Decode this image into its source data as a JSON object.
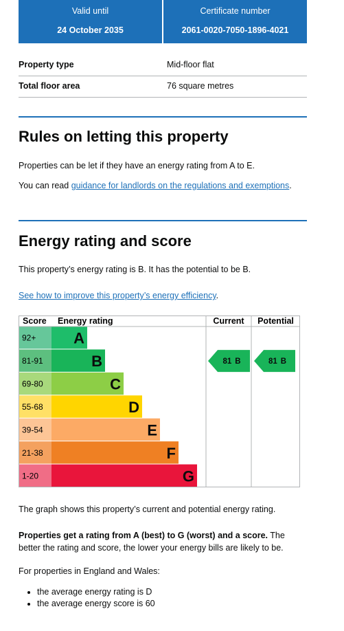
{
  "header": {
    "cells": [
      {
        "label": "Valid until",
        "value": "24 October 2035"
      },
      {
        "label": "Certificate number",
        "value": "2061-0020-7050-1896-4021"
      }
    ]
  },
  "summary": {
    "rows": [
      [
        "Property type",
        "Mid-floor flat"
      ],
      [
        "Total floor area",
        "76 square metres"
      ]
    ]
  },
  "letting": {
    "heading": "Rules on letting this property",
    "paragraph": "Properties can be let if they have an energy rating from A to E.",
    "read_prefix": "You can read ",
    "read_link": "guidance for landlords on the regulations and exemptions",
    "read_suffix": "."
  },
  "energy": {
    "heading": "Energy rating and score",
    "paragraph": "This property’s energy rating is B. It has the potential to be B.",
    "link": "See how to improve this property’s energy efficiency",
    "link_suffix": "."
  },
  "graph": {
    "headers": [
      "Score",
      "Energy rating",
      "Current",
      "Potential"
    ],
    "bands": [
      {
        "score": "92+",
        "letter": "A"
      },
      {
        "score": "81-91",
        "letter": "B"
      },
      {
        "score": "69-80",
        "letter": "C"
      },
      {
        "score": "55-68",
        "letter": "D"
      },
      {
        "score": "39-54",
        "letter": "E"
      },
      {
        "score": "21-38",
        "letter": "F"
      },
      {
        "score": "1-20",
        "letter": "G"
      }
    ],
    "current": {
      "score": 81,
      "letter": "B"
    },
    "potential": {
      "score": 81,
      "letter": "B"
    }
  },
  "after": {
    "graph_note": "The graph shows this property’s current and potential energy rating.",
    "bold": "Properties get a rating from A (best) to G (worst) and a score.",
    "rest": " The better the rating and score, the lower your energy bills are likely to be.",
    "england_intro": "For properties in England and Wales:",
    "bullets": [
      "the average energy rating is D",
      "the average energy score is 60"
    ]
  }
}
